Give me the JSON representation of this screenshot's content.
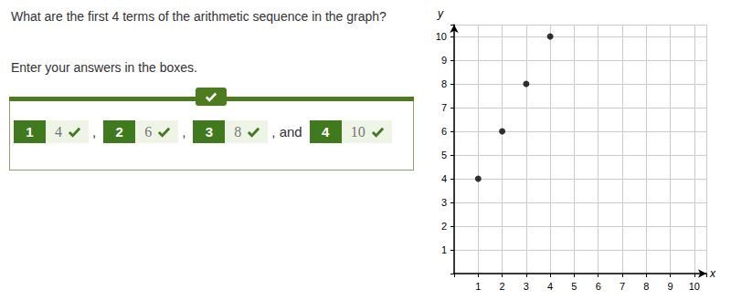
{
  "question": "What are the first 4 terms of the arithmetic sequence in the graph?",
  "instruction": "Enter your answers in the boxes.",
  "answers": [
    {
      "number": 1,
      "value": 4
    },
    {
      "number": 2,
      "value": 6
    },
    {
      "number": 3,
      "value": 8
    },
    {
      "number": 4,
      "value": 10
    }
  ],
  "separators": [
    ",",
    ",",
    ", and"
  ],
  "chart_data": {
    "type": "scatter",
    "x": [
      1,
      2,
      3,
      4
    ],
    "values": [
      4,
      6,
      8,
      10
    ],
    "xlabel": "x",
    "ylabel": "y",
    "color": "#000000",
    "marker": "circle",
    "xlim": [
      0,
      10.5
    ],
    "ylim": [
      0,
      10.5
    ],
    "xticks": [
      1,
      2,
      3,
      4,
      5,
      6,
      7,
      8,
      9,
      10
    ],
    "yticks": [
      1,
      2,
      3,
      4,
      5,
      6,
      7,
      8,
      9,
      10
    ],
    "grid": true
  }
}
